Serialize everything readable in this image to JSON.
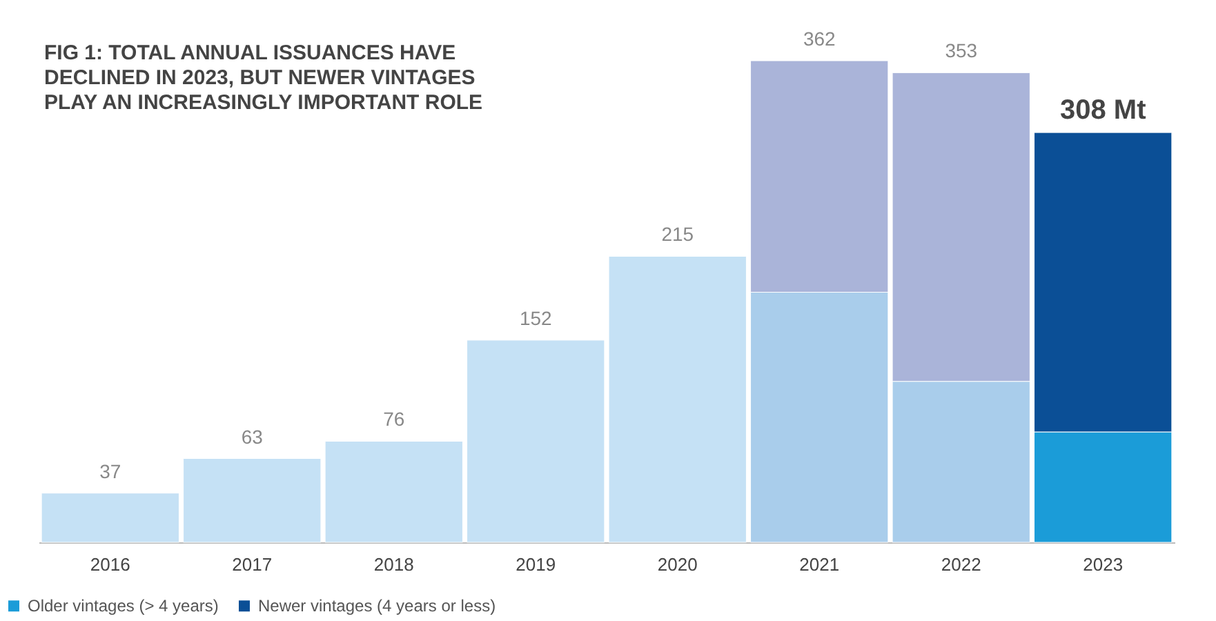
{
  "chart_data": {
    "type": "bar",
    "stacked": true,
    "title": [
      "FIG 1: TOTAL ANNUAL ISSUANCES HAVE",
      "DECLINED IN 2023, BUT NEWER VINTAGES",
      "PLAY AN INCREASINGLY IMPORTANT ROLE"
    ],
    "categories": [
      "2016",
      "2017",
      "2018",
      "2019",
      "2020",
      "2021",
      "2022",
      "2023"
    ],
    "series": [
      {
        "colors": [
          "#c5e1f5",
          "#c5e1f5",
          "#c5e1f5",
          "#c5e1f5",
          "#c5e1f5",
          "#a9cdeb",
          "#a9cdeb",
          null
        ],
        "values": [
          37,
          63,
          76,
          152,
          215,
          188,
          121,
          null
        ],
        "value_labels": [
          "37",
          "63",
          "76",
          "152",
          "215",
          null,
          null,
          null
        ]
      },
      {
        "color": "#aab4d9",
        "values": [
          null,
          null,
          null,
          null,
          null,
          174,
          232,
          null
        ]
      },
      {
        "name": "Older vintages (> 4 years)",
        "color": "#1b9cd8",
        "values": [
          null,
          null,
          null,
          null,
          null,
          null,
          null,
          83
        ]
      },
      {
        "name": "Newer vintages (4 years or less)",
        "color": "#0b4f96",
        "values": [
          null,
          null,
          null,
          null,
          null,
          null,
          null,
          225
        ]
      }
    ],
    "totals": [
      null,
      null,
      null,
      null,
      null,
      "362",
      "353",
      "308 Mt"
    ],
    "grid": false,
    "legend": "bottom left"
  }
}
